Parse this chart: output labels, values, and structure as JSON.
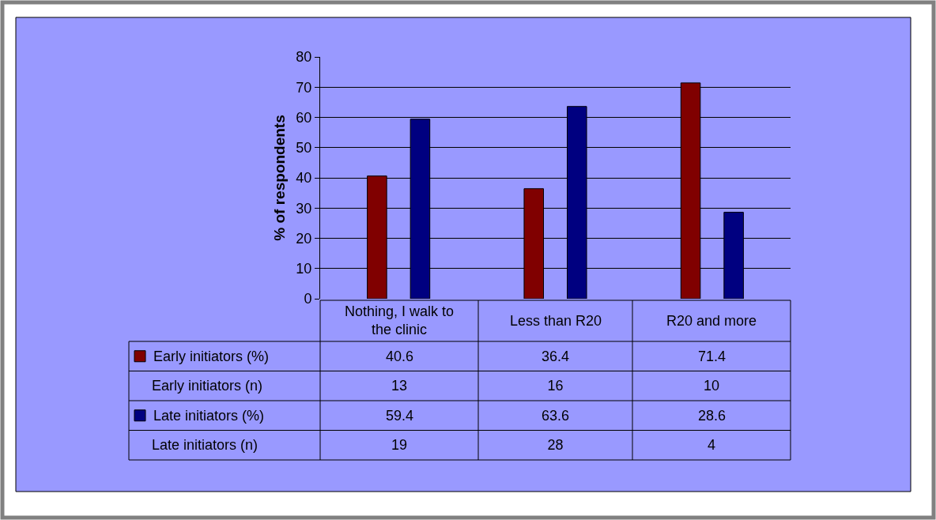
{
  "chart_data": {
    "type": "bar",
    "ylabel": "% of respondents",
    "categories": [
      "Nothing, I walk to the clinic",
      "Less than R20",
      "R20 and more"
    ],
    "series": [
      {
        "name": "Early initiators (%)",
        "color": "#800000",
        "values": [
          40.6,
          36.4,
          71.4
        ]
      },
      {
        "name": "Late initiators (%)",
        "color": "#000080",
        "values": [
          59.4,
          63.6,
          28.6
        ]
      }
    ],
    "annotations": [
      "Early initiators (n)",
      "13",
      "16",
      "10",
      "Late initiators (n)",
      "19",
      "28",
      "4"
    ],
    "ylim": [
      0,
      80
    ],
    "yticks": [
      0,
      10,
      20,
      30,
      40,
      50,
      60,
      70,
      80
    ],
    "grid": "y",
    "legend": "bottom",
    "data_labels": true
  }
}
